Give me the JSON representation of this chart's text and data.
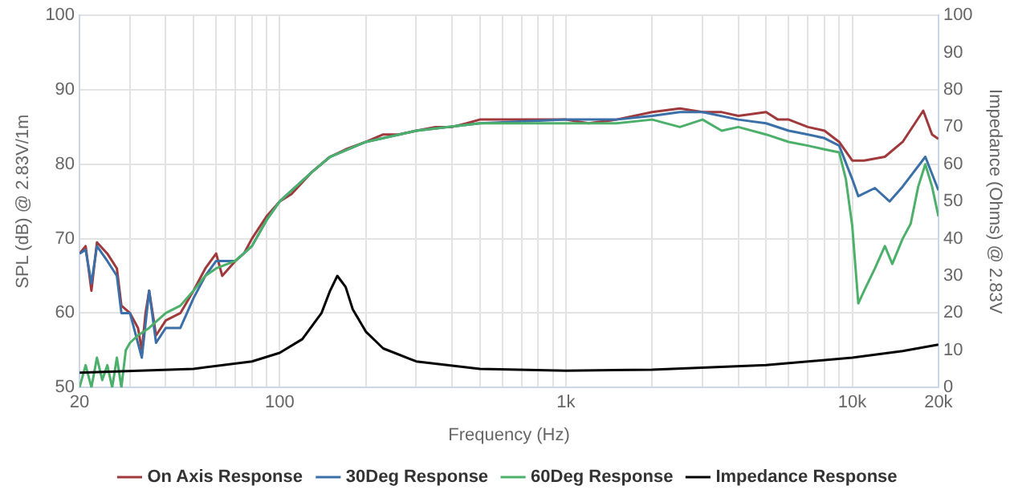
{
  "chart_data": {
    "type": "line",
    "xlabel": "Frequency (Hz)",
    "ylabel": "SPL (dB) @ 2.83V/1m",
    "y2label": "Impedance (Ohms) @ 2.83V",
    "log": "x",
    "grid": true,
    "legend": "bottom",
    "marker": "none",
    "line_style": "solid",
    "xlim": [
      20,
      20000
    ],
    "xticks": [
      20,
      {
        "value": 30,
        "label": null
      },
      {
        "value": 40,
        "label": null
      },
      {
        "value": 50,
        "label": null
      },
      {
        "value": 60,
        "label": null
      },
      {
        "value": 70,
        "label": null
      },
      {
        "value": 80,
        "label": null
      },
      {
        "value": 90,
        "label": null
      },
      100,
      {
        "value": 200,
        "label": null
      },
      {
        "value": 300,
        "label": null
      },
      {
        "value": 400,
        "label": null
      },
      {
        "value": 500,
        "label": null
      },
      {
        "value": 600,
        "label": null
      },
      {
        "value": 700,
        "label": null
      },
      {
        "value": 800,
        "label": null
      },
      {
        "value": 900,
        "label": null
      },
      {
        "value": 1000,
        "label": "1k"
      },
      {
        "value": 2000,
        "label": null
      },
      {
        "value": 3000,
        "label": null
      },
      {
        "value": 4000,
        "label": null
      },
      {
        "value": 5000,
        "label": null
      },
      {
        "value": 6000,
        "label": null
      },
      {
        "value": 7000,
        "label": null
      },
      {
        "value": 8000,
        "label": null
      },
      {
        "value": 9000,
        "label": null
      },
      {
        "value": 10000,
        "label": "10k"
      },
      {
        "value": 20000,
        "label": "20k"
      }
    ],
    "ylim": [
      50,
      100
    ],
    "yticks": [
      50,
      60,
      70,
      80,
      90,
      100
    ],
    "y2lim": [
      0,
      100
    ],
    "y2ticks": [
      0,
      10,
      20,
      30,
      40,
      50,
      60,
      70,
      80,
      90,
      100
    ],
    "series": [
      {
        "name": "On Axis Response",
        "color": "#a0393c",
        "x": [
          20,
          21,
          22,
          23,
          25,
          27,
          28,
          30,
          32,
          33,
          34,
          35,
          36,
          37,
          40,
          45,
          50,
          55,
          60,
          63,
          70,
          75,
          80,
          90,
          100,
          110,
          130,
          150,
          170,
          200,
          230,
          260,
          300,
          350,
          400,
          450,
          500,
          600,
          700,
          800,
          1000,
          1200,
          1500,
          2000,
          2500,
          3000,
          3500,
          4000,
          5000,
          5500,
          6000,
          7000,
          8000,
          9000,
          10000,
          11000,
          13000,
          15000,
          17700,
          19000,
          20000
        ],
        "values": [
          68,
          69,
          63,
          69.5,
          68,
          66,
          61,
          60,
          58,
          55,
          60,
          63,
          60,
          57,
          59,
          60,
          63,
          66,
          68,
          65,
          67,
          68,
          70,
          73,
          75,
          76,
          79,
          81,
          82,
          83,
          84,
          84,
          84.5,
          85,
          85,
          85.5,
          86,
          86,
          86,
          86,
          86,
          85.5,
          86,
          87,
          87.5,
          87,
          87,
          86.5,
          87,
          86,
          86,
          85,
          84.5,
          83,
          80.5,
          80.5,
          81,
          83,
          87.2,
          84,
          83.4
        ]
      },
      {
        "name": "30Deg Response",
        "color": "#3b6fa8",
        "x": [
          20,
          21,
          22,
          23,
          25,
          27,
          28,
          30,
          33,
          35,
          37,
          40,
          45,
          50,
          55,
          60,
          70,
          80,
          90,
          100,
          130,
          150,
          200,
          300,
          500,
          1000,
          1500,
          2000,
          2500,
          3000,
          4000,
          5000,
          6000,
          7000,
          8000,
          9000,
          10000,
          10500,
          12000,
          13500,
          15000,
          18000,
          20000
        ],
        "values": [
          68,
          68.5,
          64,
          69,
          67,
          65,
          60,
          60,
          54,
          63,
          56,
          58,
          58,
          62,
          65,
          67,
          67,
          69,
          72.5,
          75,
          79,
          81,
          83,
          84.5,
          85.5,
          86,
          86,
          86.5,
          87,
          87,
          86,
          85.5,
          84.5,
          84,
          83.5,
          82.5,
          78,
          75.7,
          76.8,
          75,
          77,
          81,
          76.5
        ]
      },
      {
        "name": "60Deg Response",
        "color": "#4caf6a",
        "x": [
          20,
          21,
          22,
          23,
          24,
          25,
          26,
          27,
          28,
          29,
          30,
          32,
          35,
          40,
          45,
          50,
          55,
          60,
          70,
          80,
          90,
          100,
          130,
          150,
          200,
          300,
          500,
          1000,
          1500,
          2000,
          2500,
          3000,
          3500,
          4000,
          5000,
          6000,
          7000,
          8000,
          9000,
          9500,
          10000,
          10500,
          11000,
          12000,
          13000,
          13800,
          15000,
          16000,
          17000,
          18000,
          19000,
          20000
        ],
        "values": [
          50,
          53,
          50,
          54,
          51,
          53,
          50,
          54,
          50,
          55,
          56,
          57,
          58,
          60,
          61,
          63,
          65,
          66,
          67,
          69,
          72.5,
          75,
          79,
          81,
          83,
          84.5,
          85.5,
          85.5,
          85.5,
          86,
          85,
          86,
          84.5,
          85,
          84,
          83,
          82.5,
          82,
          81.6,
          78,
          71.7,
          61.3,
          63,
          66,
          69,
          66.6,
          70,
          72,
          77,
          80,
          77,
          73
        ]
      },
      {
        "name": "Impedance Response",
        "color": "#000000",
        "axis": "y2",
        "x": [
          20,
          50,
          80,
          100,
          120,
          140,
          150,
          159,
          170,
          180,
          200,
          230,
          300,
          500,
          1000,
          2000,
          5000,
          10000,
          15000,
          20000
        ],
        "values": [
          4,
          5,
          7,
          9.3,
          13,
          20,
          26,
          30,
          27,
          21,
          15,
          10.5,
          7,
          5,
          4.5,
          4.8,
          6,
          8,
          9.8,
          11.5
        ]
      }
    ]
  }
}
